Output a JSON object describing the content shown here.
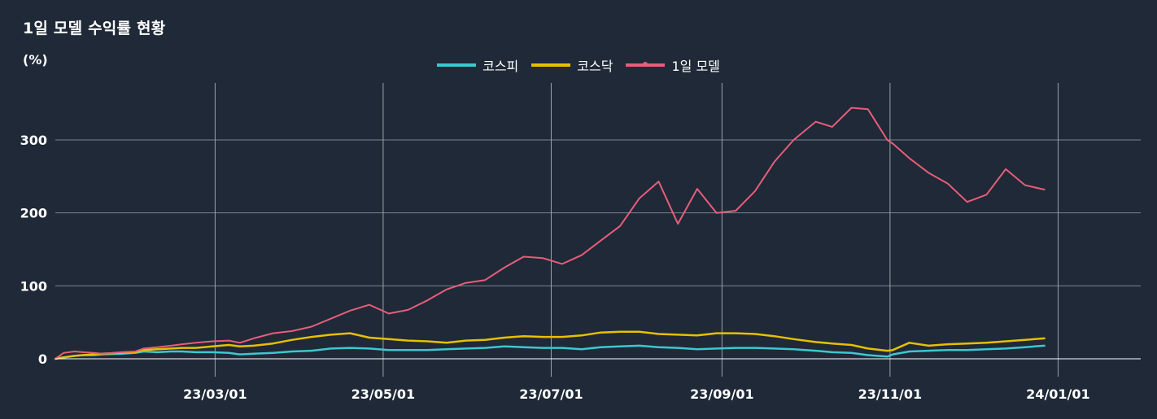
{
  "chart_data": {
    "type": "line",
    "title": "1일 모델 수익률 현황",
    "ylabel": "(%)",
    "xlabel": "",
    "ylim": [
      0,
      370
    ],
    "yticks": [
      0,
      100,
      200,
      300
    ],
    "grid": true,
    "legend_position": "top-center",
    "x_ticks": [
      "2023-03-01",
      "2023-05-01",
      "2023-07-01",
      "2023-09-01",
      "2023-11-01",
      "2024-01-01"
    ],
    "x_tick_labels": [
      "23/03/01",
      "23/05/01",
      "23/07/01",
      "23/09/01",
      "23/11/01",
      "24/01/01"
    ],
    "xlim": [
      "2023-01-02",
      "2024-01-31"
    ],
    "series": [
      {
        "name": "코스피",
        "color": "#3cc8d0",
        "points": [
          [
            "2023-01-02",
            0
          ],
          [
            "2023-01-05",
            2
          ],
          [
            "2023-01-09",
            4
          ],
          [
            "2023-01-12",
            5
          ],
          [
            "2023-01-16",
            5
          ],
          [
            "2023-01-19",
            6
          ],
          [
            "2023-01-26",
            7
          ],
          [
            "2023-01-31",
            8
          ],
          [
            "2023-02-03",
            10
          ],
          [
            "2023-02-08",
            9
          ],
          [
            "2023-02-13",
            10
          ],
          [
            "2023-02-17",
            10
          ],
          [
            "2023-02-22",
            9
          ],
          [
            "2023-02-28",
            9
          ],
          [
            "2023-03-06",
            8
          ],
          [
            "2023-03-10",
            6
          ],
          [
            "2023-03-15",
            7
          ],
          [
            "2023-03-22",
            8
          ],
          [
            "2023-03-29",
            10
          ],
          [
            "2023-04-05",
            11
          ],
          [
            "2023-04-12",
            14
          ],
          [
            "2023-04-19",
            15
          ],
          [
            "2023-04-26",
            14
          ],
          [
            "2023-05-03",
            12
          ],
          [
            "2023-05-10",
            12
          ],
          [
            "2023-05-17",
            12
          ],
          [
            "2023-05-24",
            13
          ],
          [
            "2023-05-31",
            14
          ],
          [
            "2023-06-07",
            15
          ],
          [
            "2023-06-14",
            17
          ],
          [
            "2023-06-21",
            16
          ],
          [
            "2023-06-28",
            15
          ],
          [
            "2023-07-05",
            15
          ],
          [
            "2023-07-12",
            13
          ],
          [
            "2023-07-19",
            16
          ],
          [
            "2023-07-26",
            17
          ],
          [
            "2023-08-02",
            18
          ],
          [
            "2023-08-09",
            16
          ],
          [
            "2023-08-16",
            15
          ],
          [
            "2023-08-23",
            13
          ],
          [
            "2023-08-30",
            14
          ],
          [
            "2023-09-06",
            15
          ],
          [
            "2023-09-13",
            15
          ],
          [
            "2023-09-20",
            14
          ],
          [
            "2023-09-27",
            13
          ],
          [
            "2023-10-05",
            11
          ],
          [
            "2023-10-11",
            9
          ],
          [
            "2023-10-18",
            8
          ],
          [
            "2023-10-24",
            5
          ],
          [
            "2023-10-31",
            3
          ],
          [
            "2023-11-02",
            6
          ],
          [
            "2023-11-08",
            10
          ],
          [
            "2023-11-15",
            11
          ],
          [
            "2023-11-22",
            12
          ],
          [
            "2023-11-29",
            12
          ],
          [
            "2023-12-06",
            13
          ],
          [
            "2023-12-13",
            14
          ],
          [
            "2023-12-20",
            16
          ],
          [
            "2023-12-27",
            18
          ]
        ]
      },
      {
        "name": "코스닥",
        "color": "#e6c000",
        "points": [
          [
            "2023-01-02",
            0
          ],
          [
            "2023-01-05",
            2
          ],
          [
            "2023-01-09",
            4
          ],
          [
            "2023-01-12",
            5
          ],
          [
            "2023-01-16",
            6
          ],
          [
            "2023-01-19",
            7
          ],
          [
            "2023-01-26",
            8
          ],
          [
            "2023-01-31",
            9
          ],
          [
            "2023-02-03",
            12
          ],
          [
            "2023-02-08",
            13
          ],
          [
            "2023-02-13",
            14
          ],
          [
            "2023-02-17",
            15
          ],
          [
            "2023-02-22",
            15
          ],
          [
            "2023-02-28",
            17
          ],
          [
            "2023-03-06",
            19
          ],
          [
            "2023-03-10",
            17
          ],
          [
            "2023-03-15",
            18
          ],
          [
            "2023-03-22",
            21
          ],
          [
            "2023-03-29",
            26
          ],
          [
            "2023-04-05",
            30
          ],
          [
            "2023-04-12",
            33
          ],
          [
            "2023-04-19",
            35
          ],
          [
            "2023-04-26",
            29
          ],
          [
            "2023-05-03",
            27
          ],
          [
            "2023-05-10",
            25
          ],
          [
            "2023-05-17",
            24
          ],
          [
            "2023-05-24",
            22
          ],
          [
            "2023-05-31",
            25
          ],
          [
            "2023-06-07",
            26
          ],
          [
            "2023-06-14",
            29
          ],
          [
            "2023-06-21",
            31
          ],
          [
            "2023-06-28",
            30
          ],
          [
            "2023-07-05",
            30
          ],
          [
            "2023-07-12",
            32
          ],
          [
            "2023-07-19",
            36
          ],
          [
            "2023-07-26",
            37
          ],
          [
            "2023-08-02",
            37
          ],
          [
            "2023-08-09",
            34
          ],
          [
            "2023-08-16",
            33
          ],
          [
            "2023-08-23",
            32
          ],
          [
            "2023-08-30",
            35
          ],
          [
            "2023-09-06",
            35
          ],
          [
            "2023-09-13",
            34
          ],
          [
            "2023-09-20",
            31
          ],
          [
            "2023-09-27",
            27
          ],
          [
            "2023-10-05",
            23
          ],
          [
            "2023-10-11",
            21
          ],
          [
            "2023-10-18",
            19
          ],
          [
            "2023-10-24",
            14
          ],
          [
            "2023-10-31",
            11
          ],
          [
            "2023-11-02",
            12
          ],
          [
            "2023-11-08",
            22
          ],
          [
            "2023-11-15",
            18
          ],
          [
            "2023-11-22",
            20
          ],
          [
            "2023-11-29",
            21
          ],
          [
            "2023-12-06",
            22
          ],
          [
            "2023-12-13",
            24
          ],
          [
            "2023-12-20",
            26
          ],
          [
            "2023-12-27",
            28
          ]
        ]
      },
      {
        "name": "1일 모델",
        "color": "#e85d7a",
        "points": [
          [
            "2023-01-02",
            0
          ],
          [
            "2023-01-05",
            8
          ],
          [
            "2023-01-09",
            10
          ],
          [
            "2023-01-12",
            9
          ],
          [
            "2023-01-16",
            8
          ],
          [
            "2023-01-19",
            7
          ],
          [
            "2023-01-26",
            9
          ],
          [
            "2023-01-31",
            10
          ],
          [
            "2023-02-03",
            14
          ],
          [
            "2023-02-08",
            16
          ],
          [
            "2023-02-13",
            18
          ],
          [
            "2023-02-17",
            20
          ],
          [
            "2023-02-22",
            22
          ],
          [
            "2023-02-28",
            24
          ],
          [
            "2023-03-06",
            25
          ],
          [
            "2023-03-10",
            22
          ],
          [
            "2023-03-15",
            28
          ],
          [
            "2023-03-22",
            35
          ],
          [
            "2023-03-29",
            38
          ],
          [
            "2023-04-05",
            44
          ],
          [
            "2023-04-12",
            55
          ],
          [
            "2023-04-19",
            66
          ],
          [
            "2023-04-26",
            74
          ],
          [
            "2023-05-03",
            62
          ],
          [
            "2023-05-10",
            67
          ],
          [
            "2023-05-17",
            80
          ],
          [
            "2023-05-24",
            95
          ],
          [
            "2023-05-31",
            104
          ],
          [
            "2023-06-07",
            108
          ],
          [
            "2023-06-14",
            125
          ],
          [
            "2023-06-21",
            140
          ],
          [
            "2023-06-28",
            138
          ],
          [
            "2023-07-05",
            130
          ],
          [
            "2023-07-12",
            142
          ],
          [
            "2023-07-19",
            162
          ],
          [
            "2023-07-26",
            182
          ],
          [
            "2023-08-02",
            220
          ],
          [
            "2023-08-09",
            243
          ],
          [
            "2023-08-16",
            185
          ],
          [
            "2023-08-23",
            233
          ],
          [
            "2023-08-30",
            200
          ],
          [
            "2023-09-06",
            203
          ],
          [
            "2023-09-13",
            230
          ],
          [
            "2023-09-20",
            270
          ],
          [
            "2023-09-27",
            300
          ],
          [
            "2023-10-05",
            325
          ],
          [
            "2023-10-11",
            318
          ],
          [
            "2023-10-18",
            344
          ],
          [
            "2023-10-24",
            342
          ],
          [
            "2023-10-31",
            300
          ],
          [
            "2023-11-02",
            295
          ],
          [
            "2023-11-08",
            275
          ],
          [
            "2023-11-15",
            255
          ],
          [
            "2023-11-22",
            240
          ],
          [
            "2023-11-29",
            215
          ],
          [
            "2023-12-06",
            225
          ],
          [
            "2023-12-13",
            260
          ],
          [
            "2023-12-20",
            238
          ],
          [
            "2023-12-27",
            232
          ]
        ]
      }
    ]
  }
}
